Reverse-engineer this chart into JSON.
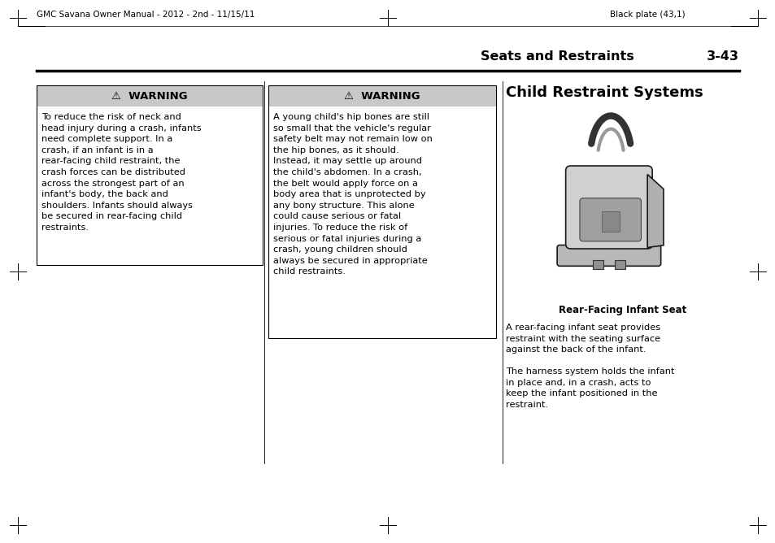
{
  "background_color": "#ffffff",
  "header_left": "GMC Savana Owner Manual - 2012 - 2nd - 11/15/11",
  "header_right": "Black plate (43,1)",
  "section_title": "Seats and Restraints",
  "section_number": "3-43",
  "col_right_title": "Child Restraint Systems",
  "warning_header": "⚠  WARNING",
  "warning1_body": "To reduce the risk of neck and\nhead injury during a crash, infants\nneed complete support. In a\ncrash, if an infant is in a\nrear-facing child restraint, the\ncrash forces can be distributed\nacross the strongest part of an\ninfant's body, the back and\nshoulders. Infants should always\nbe secured in rear-facing child\nrestraints.",
  "warning2_body": "A young child's hip bones are still\nso small that the vehicle's regular\nsafety belt may not remain low on\nthe hip bones, as it should.\nInstead, it may settle up around\nthe child's abdomen. In a crash,\nthe belt would apply force on a\nbody area that is unprotected by\nany bony structure. This alone\ncould cause serious or fatal\ninjuries. To reduce the risk of\nserious or fatal injuries during a\ncrash, young children should\nalways be secured in appropriate\nchild restraints.",
  "caption": "Rear-Facing Infant Seat",
  "para1": "A rear-facing infant seat provides\nrestraint with the seating surface\nagainst the back of the infant.",
  "para2": "The harness system holds the infant\nin place and, in a crash, acts to\nkeep the infant positioned in the\nrestraint.",
  "warning_bg": "#c8c8c8",
  "text_color": "#000000",
  "font_size_header": 7.5,
  "font_size_section": 11.5,
  "font_size_title": 13,
  "font_size_warning_hdr": 9.5,
  "font_size_body": 8.2,
  "font_size_caption": 8.5
}
